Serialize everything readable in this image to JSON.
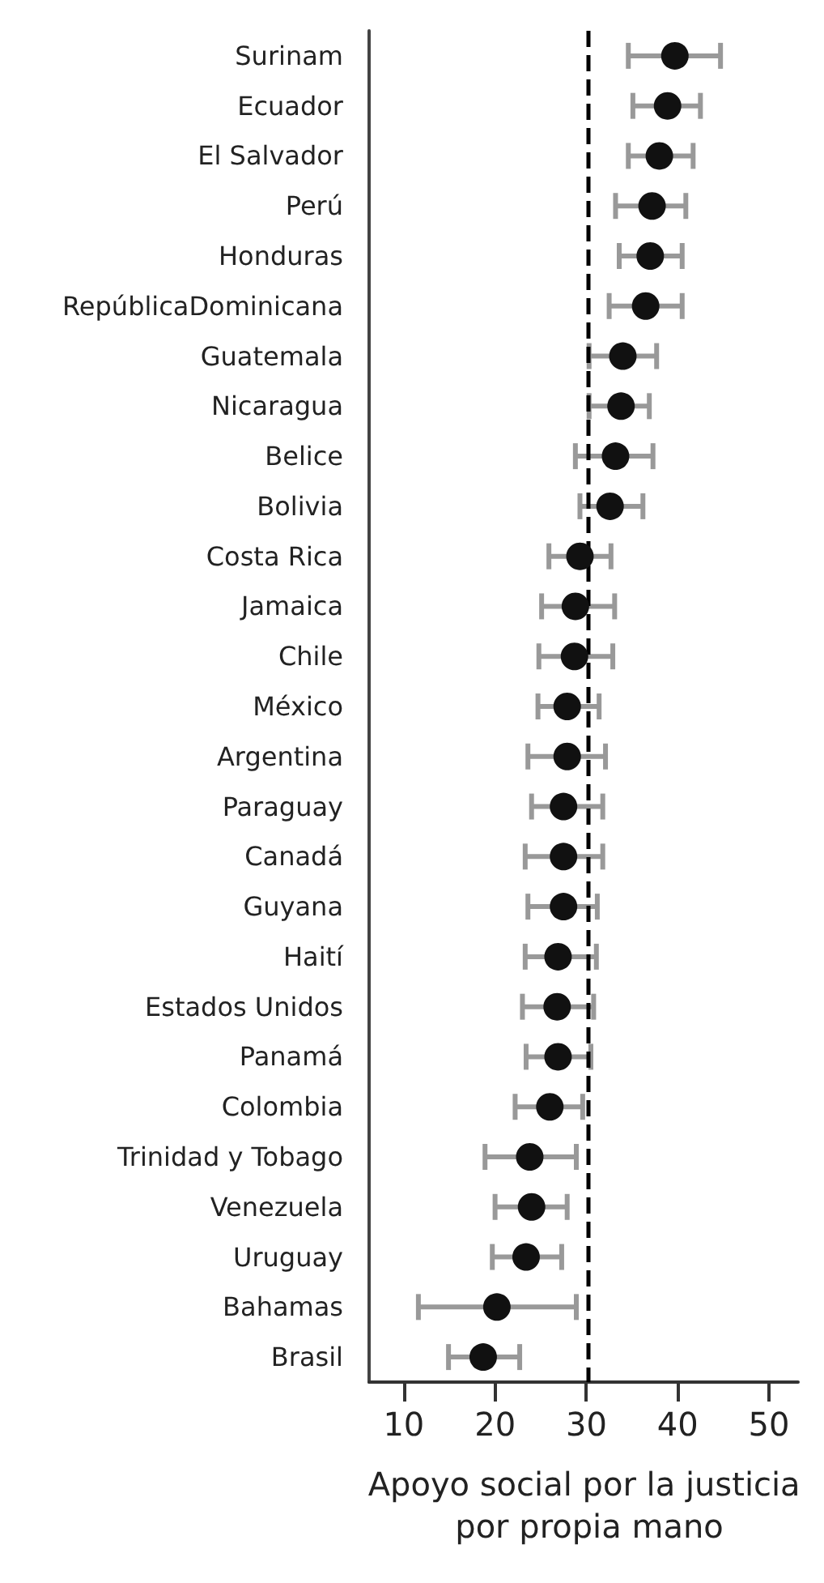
{
  "chart_data": {
    "type": "scatter",
    "orientation": "horizontal",
    "xlabel": "Apoyo social por la justicia por propia mano",
    "categories": [
      "Surinam",
      "Ecuador",
      "El Salvador",
      "Perú",
      "Honduras",
      "RepúblicaDominicana",
      "Guatemala",
      "Nicaragua",
      "Belice",
      "Bolivia",
      "Costa Rica",
      "Jamaica",
      "Chile",
      "México",
      "Argentina",
      "Paraguay",
      "Canadá",
      "Guyana",
      "Haití",
      "Estados Unidos",
      "Panamá",
      "Colombia",
      "Trinidad y Tobago",
      "Venezuela",
      "Uruguay",
      "Bahamas",
      "Brasil"
    ],
    "values": [
      39.7,
      38.9,
      38.0,
      37.2,
      37.0,
      36.5,
      34.0,
      33.8,
      33.2,
      32.6,
      29.3,
      28.8,
      28.7,
      27.9,
      27.9,
      27.5,
      27.5,
      27.5,
      26.9,
      26.8,
      26.9,
      26.0,
      23.8,
      24.0,
      23.4,
      20.2,
      18.7
    ],
    "errors": [
      [
        34.6,
        44.7
      ],
      [
        35.1,
        42.5
      ],
      [
        34.6,
        41.7
      ],
      [
        33.2,
        40.9
      ],
      [
        33.6,
        40.5
      ],
      [
        32.5,
        40.5
      ],
      [
        30.3,
        37.7
      ],
      [
        30.3,
        36.9
      ],
      [
        28.8,
        37.3
      ],
      [
        29.3,
        36.2
      ],
      [
        25.9,
        32.7
      ],
      [
        25.1,
        33.1
      ],
      [
        24.8,
        32.9
      ],
      [
        24.7,
        31.4
      ],
      [
        23.6,
        32.1
      ],
      [
        24.0,
        31.8
      ],
      [
        23.3,
        31.8
      ],
      [
        23.6,
        31.2
      ],
      [
        23.3,
        31.1
      ],
      [
        23.0,
        30.8
      ],
      [
        23.4,
        30.5
      ],
      [
        22.2,
        29.6
      ],
      [
        18.9,
        28.9
      ],
      [
        20.0,
        27.9
      ],
      [
        19.7,
        27.3
      ],
      [
        11.6,
        28.9
      ],
      [
        14.9,
        22.7
      ]
    ],
    "color": "#111111",
    "marker": "circle",
    "grid": false,
    "xlim": [
      6.2,
      53.2
    ],
    "xticks": [
      10,
      20,
      30,
      40,
      50
    ],
    "ref_lines": [
      {
        "axis": "x",
        "value": 30.2,
        "color": "#000000",
        "line_style": "dashed"
      }
    ]
  }
}
